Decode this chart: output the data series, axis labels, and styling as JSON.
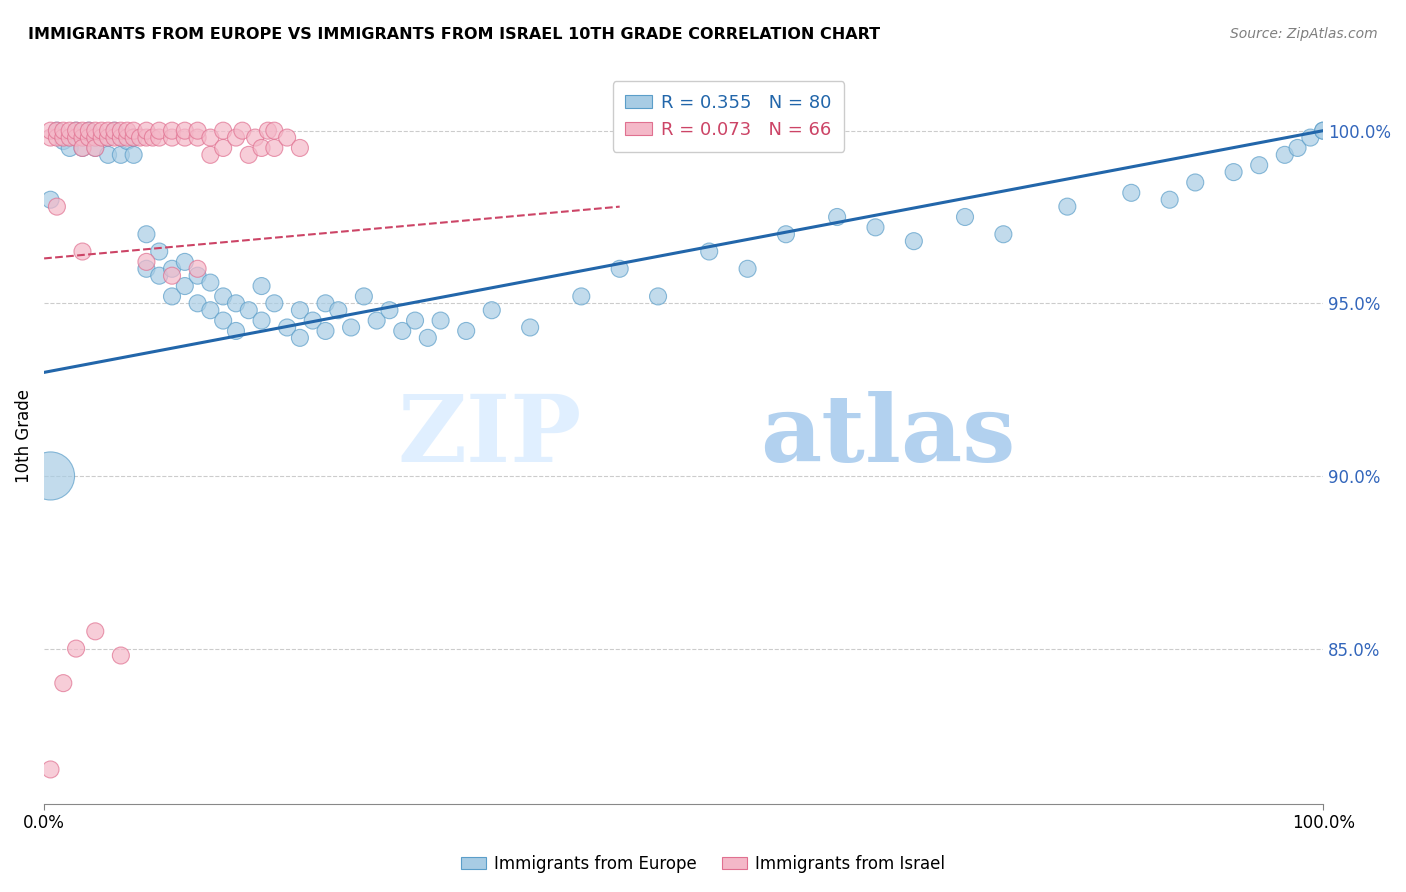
{
  "title": "IMMIGRANTS FROM EUROPE VS IMMIGRANTS FROM ISRAEL 10TH GRADE CORRELATION CHART",
  "source": "Source: ZipAtlas.com",
  "ylabel": "10th Grade",
  "y_ticks": [
    0.85,
    0.9,
    0.95,
    1.0
  ],
  "y_tick_labels": [
    "85.0%",
    "90.0%",
    "95.0%",
    "100.0%"
  ],
  "x_lim": [
    0.0,
    1.0
  ],
  "y_lim": [
    0.805,
    1.018
  ],
  "blue_color": "#a8cce4",
  "pink_color": "#f4b8c8",
  "blue_edge_color": "#5b9ec9",
  "pink_edge_color": "#e07090",
  "blue_line_color": "#2266aa",
  "pink_line_color": "#cc4466",
  "watermark_zip": "ZIP",
  "watermark_atlas": "atlas",
  "legend_blue_r": "R = 0.355",
  "legend_blue_n": "N = 80",
  "legend_pink_r": "R = 0.073",
  "legend_pink_n": "N = 66",
  "blue_points_x": [
    0.005,
    0.01,
    0.015,
    0.02,
    0.02,
    0.025,
    0.03,
    0.03,
    0.035,
    0.04,
    0.04,
    0.05,
    0.05,
    0.055,
    0.06,
    0.06,
    0.065,
    0.07,
    0.07,
    0.08,
    0.08,
    0.09,
    0.09,
    0.1,
    0.1,
    0.11,
    0.11,
    0.12,
    0.12,
    0.13,
    0.13,
    0.14,
    0.14,
    0.15,
    0.15,
    0.16,
    0.17,
    0.17,
    0.18,
    0.19,
    0.2,
    0.2,
    0.21,
    0.22,
    0.22,
    0.23,
    0.24,
    0.25,
    0.26,
    0.27,
    0.28,
    0.29,
    0.3,
    0.31,
    0.33,
    0.35,
    0.38,
    0.42,
    0.45,
    0.48,
    0.52,
    0.55,
    0.58,
    0.62,
    0.65,
    0.68,
    0.72,
    0.75,
    0.8,
    0.85,
    0.88,
    0.9,
    0.93,
    0.95,
    0.97,
    0.98,
    0.99,
    1.0,
    1.0,
    0.005
  ],
  "blue_points_y": [
    0.98,
    1.0,
    0.997,
    0.998,
    0.995,
    1.0,
    0.998,
    0.995,
    1.0,
    0.998,
    0.995,
    0.998,
    0.993,
    1.0,
    0.998,
    0.993,
    0.997,
    0.998,
    0.993,
    0.97,
    0.96,
    0.965,
    0.958,
    0.96,
    0.952,
    0.962,
    0.955,
    0.958,
    0.95,
    0.956,
    0.948,
    0.952,
    0.945,
    0.95,
    0.942,
    0.948,
    0.955,
    0.945,
    0.95,
    0.943,
    0.948,
    0.94,
    0.945,
    0.95,
    0.942,
    0.948,
    0.943,
    0.952,
    0.945,
    0.948,
    0.942,
    0.945,
    0.94,
    0.945,
    0.942,
    0.948,
    0.943,
    0.952,
    0.96,
    0.952,
    0.965,
    0.96,
    0.97,
    0.975,
    0.972,
    0.968,
    0.975,
    0.97,
    0.978,
    0.982,
    0.98,
    0.985,
    0.988,
    0.99,
    0.993,
    0.995,
    0.998,
    1.0,
    1.0,
    0.9
  ],
  "blue_sizes": [
    150,
    150,
    150,
    150,
    150,
    150,
    150,
    150,
    150,
    150,
    150,
    150,
    150,
    150,
    150,
    150,
    150,
    150,
    150,
    150,
    150,
    150,
    150,
    150,
    150,
    150,
    150,
    150,
    150,
    150,
    150,
    150,
    150,
    150,
    150,
    150,
    150,
    150,
    150,
    150,
    150,
    150,
    150,
    150,
    150,
    150,
    150,
    150,
    150,
    150,
    150,
    150,
    150,
    150,
    150,
    150,
    150,
    150,
    150,
    150,
    150,
    150,
    150,
    150,
    150,
    150,
    150,
    150,
    150,
    150,
    150,
    150,
    150,
    150,
    150,
    150,
    150,
    150,
    150,
    1200
  ],
  "pink_points_x": [
    0.005,
    0.005,
    0.01,
    0.01,
    0.015,
    0.015,
    0.02,
    0.02,
    0.025,
    0.025,
    0.03,
    0.03,
    0.03,
    0.035,
    0.035,
    0.04,
    0.04,
    0.04,
    0.045,
    0.045,
    0.05,
    0.05,
    0.055,
    0.055,
    0.06,
    0.06,
    0.065,
    0.065,
    0.07,
    0.07,
    0.075,
    0.08,
    0.08,
    0.085,
    0.09,
    0.09,
    0.1,
    0.1,
    0.11,
    0.11,
    0.12,
    0.12,
    0.13,
    0.13,
    0.14,
    0.14,
    0.15,
    0.155,
    0.16,
    0.165,
    0.17,
    0.175,
    0.18,
    0.18,
    0.19,
    0.2,
    0.01,
    0.03,
    0.08,
    0.1,
    0.12,
    0.005,
    0.025,
    0.015,
    0.04,
    0.06
  ],
  "pink_points_y": [
    0.998,
    1.0,
    0.998,
    1.0,
    0.998,
    1.0,
    0.998,
    1.0,
    0.998,
    1.0,
    0.998,
    1.0,
    0.995,
    0.998,
    1.0,
    0.998,
    1.0,
    0.995,
    0.998,
    1.0,
    0.998,
    1.0,
    0.998,
    1.0,
    0.998,
    1.0,
    0.998,
    1.0,
    0.998,
    1.0,
    0.998,
    0.998,
    1.0,
    0.998,
    0.998,
    1.0,
    0.998,
    1.0,
    0.998,
    1.0,
    0.998,
    1.0,
    0.998,
    0.993,
    0.995,
    1.0,
    0.998,
    1.0,
    0.993,
    0.998,
    0.995,
    1.0,
    0.995,
    1.0,
    0.998,
    0.995,
    0.978,
    0.965,
    0.962,
    0.958,
    0.96,
    0.815,
    0.85,
    0.84,
    0.855,
    0.848
  ],
  "pink_sizes": [
    150,
    150,
    150,
    150,
    150,
    150,
    150,
    150,
    150,
    150,
    150,
    150,
    150,
    150,
    150,
    150,
    150,
    150,
    150,
    150,
    150,
    150,
    150,
    150,
    150,
    150,
    150,
    150,
    150,
    150,
    150,
    150,
    150,
    150,
    150,
    150,
    150,
    150,
    150,
    150,
    150,
    150,
    150,
    150,
    150,
    150,
    150,
    150,
    150,
    150,
    150,
    150,
    150,
    150,
    150,
    150,
    150,
    150,
    150,
    150,
    150,
    150,
    150,
    150,
    150,
    150
  ]
}
